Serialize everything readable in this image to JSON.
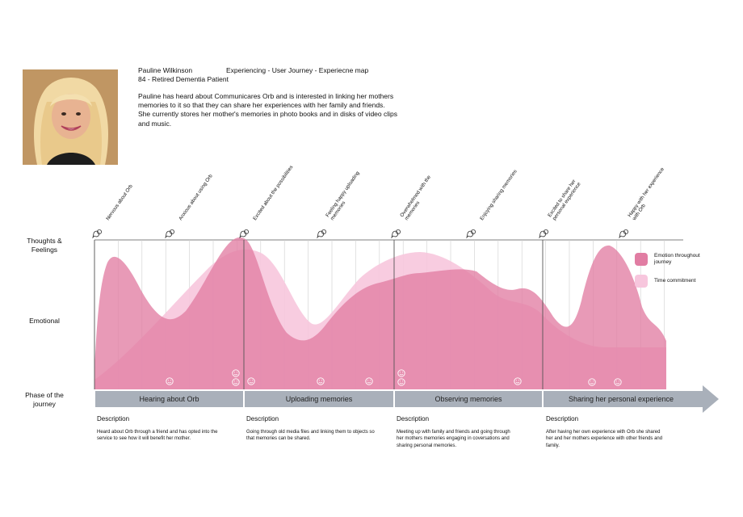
{
  "persona": {
    "name": "Pauline Wilkinson",
    "map_title": "Experiencing - User Journey - Experiecne map",
    "subtitle": "84 - Retired Dementia Patient",
    "intro": "Pauline has heard about Communicares Orb and is interested in linking her mothers\nmemories to it so that they can share her experiences with her family and friends.\nShe currently stores her mother's memories in photo books and in disks of video clips\nand music."
  },
  "rows": {
    "thoughts": "Thoughts &\nFeelings",
    "emotional": "Emotional",
    "phase": "Phase of the\njourney"
  },
  "thoughts": [
    {
      "text": "Nervous about Orb",
      "lines": [
        "Nervous about Orb"
      ]
    },
    {
      "text": "Anxious about using Orb",
      "lines": [
        "Anxious about using Orb"
      ]
    },
    {
      "text": "Excited about the possibilities",
      "lines": [
        "Excited about the possibilities"
      ]
    },
    {
      "text": "Feeling happy uploading memories",
      "lines": [
        "Feeling happy uploading",
        "memories"
      ]
    },
    {
      "text": "Overwhelmed with the memories",
      "lines": [
        "Overwhelmed with the",
        "memories"
      ]
    },
    {
      "text": "Enjoying sharing memories",
      "lines": [
        "Enjoying sharing memories"
      ]
    },
    {
      "text": "Excited to share her personal experience",
      "lines": [
        "Excited to share her",
        "personal experience"
      ]
    },
    {
      "text": "Happy with her experience with Orb",
      "lines": [
        "Happy with her experience",
        "with Orb"
      ]
    }
  ],
  "phases": [
    {
      "label": "Hearing about Orb",
      "desc_title": "Description",
      "desc": "Heard about Orb through a friend and has opted into the service to see how it will benefit her mother."
    },
    {
      "label": "Uploading memories",
      "desc_title": "Description",
      "desc": "Going through old media files and linking them to objects so that memories can be shared."
    },
    {
      "label": "Observing memories",
      "desc_title": "Description",
      "desc": "Meeting up with family and friends and going through her mothers memories engaging in coversations and sharing personal memories."
    },
    {
      "label": "Sharing her personal experience",
      "desc_title": "Description",
      "desc": "After having her own experience with Orb she shared her and her mothers experience with other friends and family."
    }
  ],
  "legend": [
    {
      "label": "Emotion throughout journey",
      "lines": [
        "Emotion throughout",
        "journey"
      ],
      "color": "#e17da3"
    },
    {
      "label": "Time commitment",
      "lines": [
        "Time commitment"
      ],
      "color": "#f7c6dd"
    }
  ],
  "colors": {
    "emotion": "#e17da3",
    "time": "#f7c6dd",
    "phase_bar": "#a9b0ba",
    "grid": "#cfcfcf"
  },
  "icons": {
    "thought_marker": "thought-bubble-icon",
    "face": "smiley-face-icon"
  }
}
